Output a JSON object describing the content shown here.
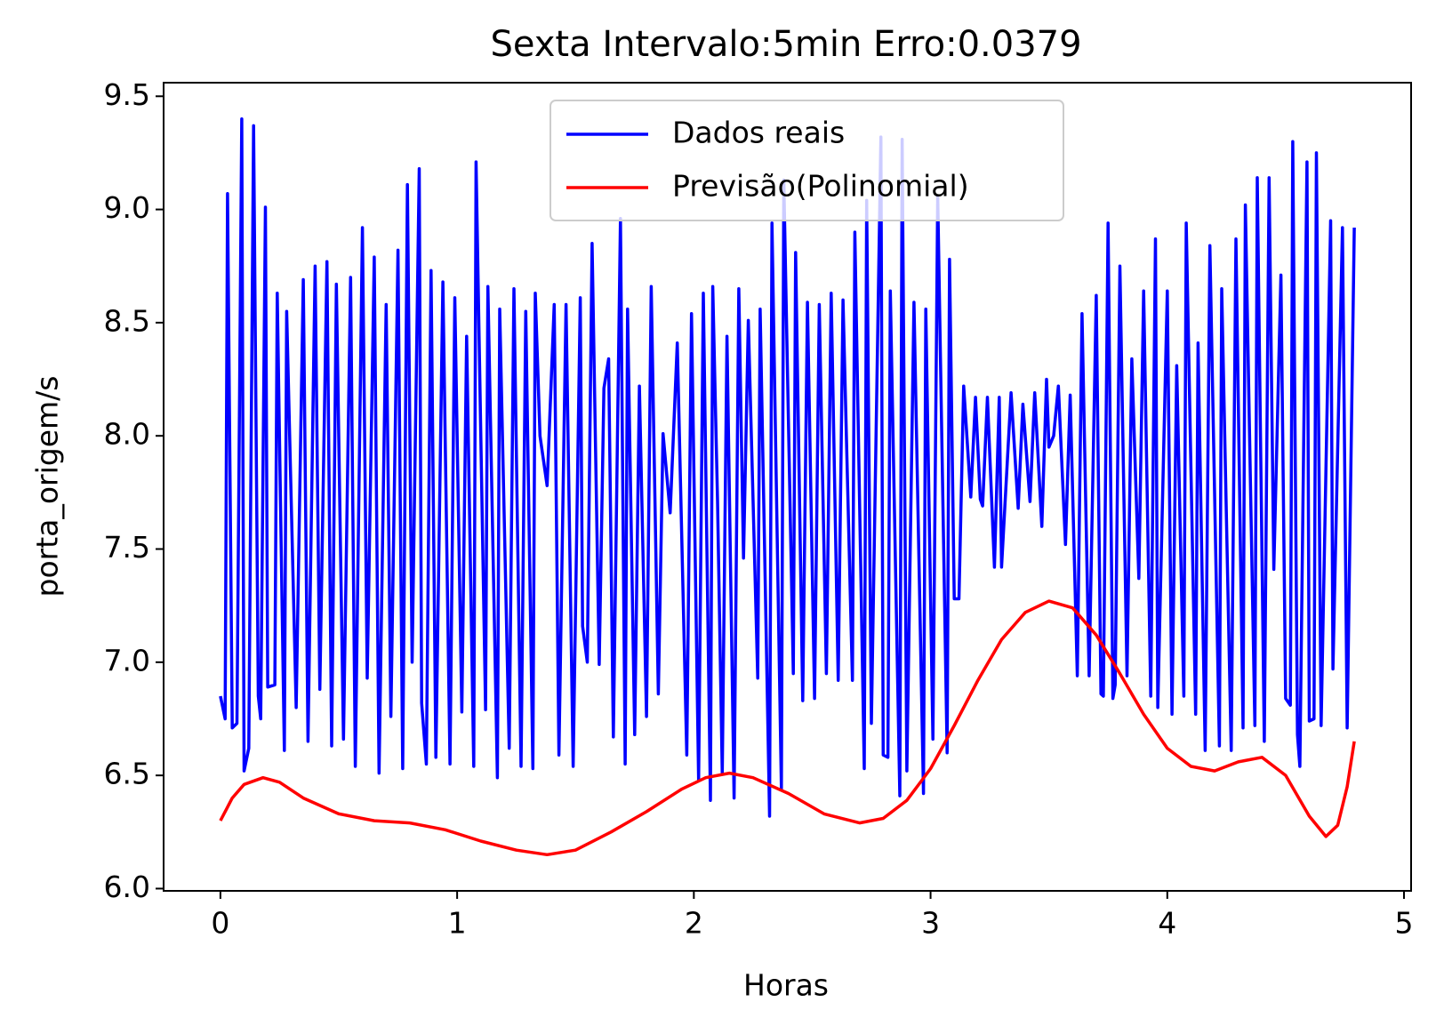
{
  "chart_data": {
    "type": "line",
    "title": "Sexta Intervalo:5min Erro:0.0379",
    "x_label": "Horas",
    "y_label": "porta_origem/s",
    "xlim": [
      -0.24,
      5.03
    ],
    "ylim": [
      5.99,
      9.56
    ],
    "xticks": [
      0,
      1,
      2,
      3,
      4,
      5
    ],
    "yticks": [
      {
        "value": 6.0,
        "label": "6.0"
      },
      6.5,
      {
        "value": 7.0,
        "label": "7.0"
      },
      7.5,
      {
        "value": 8.0,
        "label": "8.0"
      },
      8.5,
      {
        "value": 9.0,
        "label": "9.0"
      },
      9.5
    ],
    "legend_position": "upper center",
    "series": [
      {
        "name": "Dados reais",
        "color": "#0000ff",
        "x": [
          0.0,
          0.02,
          0.03,
          0.05,
          0.07,
          0.09,
          0.1,
          0.12,
          0.14,
          0.16,
          0.17,
          0.19,
          0.2,
          0.23,
          0.24,
          0.27,
          0.28,
          0.32,
          0.35,
          0.37,
          0.4,
          0.42,
          0.45,
          0.47,
          0.49,
          0.52,
          0.55,
          0.57,
          0.6,
          0.62,
          0.65,
          0.67,
          0.7,
          0.72,
          0.75,
          0.77,
          0.79,
          0.81,
          0.84,
          0.85,
          0.87,
          0.89,
          0.91,
          0.94,
          0.97,
          0.99,
          1.02,
          1.04,
          1.07,
          1.08,
          1.12,
          1.13,
          1.17,
          1.18,
          1.22,
          1.24,
          1.27,
          1.29,
          1.32,
          1.33,
          1.35,
          1.38,
          1.41,
          1.43,
          1.46,
          1.49,
          1.52,
          1.53,
          1.55,
          1.57,
          1.6,
          1.62,
          1.64,
          1.66,
          1.69,
          1.71,
          1.72,
          1.75,
          1.77,
          1.8,
          1.82,
          1.85,
          1.87,
          1.9,
          1.93,
          1.97,
          1.99,
          2.02,
          2.04,
          2.07,
          2.08,
          2.1,
          2.12,
          2.14,
          2.17,
          2.19,
          2.21,
          2.23,
          2.27,
          2.28,
          2.32,
          2.33,
          2.37,
          2.38,
          2.42,
          2.43,
          2.46,
          2.48,
          2.51,
          2.53,
          2.56,
          2.58,
          2.61,
          2.63,
          2.67,
          2.68,
          2.72,
          2.73,
          2.75,
          2.79,
          2.8,
          2.82,
          2.83,
          2.87,
          2.88,
          2.9,
          2.93,
          2.97,
          2.98,
          3.01,
          3.03,
          3.07,
          3.08,
          3.1,
          3.12,
          3.14,
          3.17,
          3.19,
          3.21,
          3.22,
          3.24,
          3.27,
          3.29,
          3.3,
          3.34,
          3.37,
          3.39,
          3.42,
          3.44,
          3.47,
          3.49,
          3.5,
          3.52,
          3.54,
          3.57,
          3.59,
          3.62,
          3.64,
          3.67,
          3.7,
          3.72,
          3.73,
          3.75,
          3.77,
          3.78,
          3.8,
          3.83,
          3.85,
          3.88,
          3.9,
          3.93,
          3.95,
          3.96,
          4.0,
          4.02,
          4.04,
          4.07,
          4.08,
          4.12,
          4.13,
          4.16,
          4.18,
          4.22,
          4.23,
          4.27,
          4.29,
          4.32,
          4.33,
          4.37,
          4.38,
          4.41,
          4.43,
          4.45,
          4.48,
          4.5,
          4.52,
          4.53,
          4.55,
          4.56,
          4.59,
          4.6,
          4.62,
          4.63,
          4.65,
          4.69,
          4.7,
          4.74,
          4.76,
          4.79
        ],
        "values": [
          6.85,
          6.75,
          9.07,
          6.71,
          6.73,
          9.4,
          6.52,
          6.62,
          9.37,
          6.85,
          6.75,
          9.01,
          6.89,
          6.9,
          8.63,
          6.61,
          8.55,
          6.8,
          8.69,
          6.65,
          8.75,
          6.88,
          8.77,
          6.63,
          8.67,
          6.66,
          8.7,
          6.54,
          8.92,
          6.93,
          8.79,
          6.51,
          8.58,
          6.76,
          8.82,
          6.53,
          9.11,
          7.0,
          9.18,
          6.82,
          6.55,
          8.73,
          6.58,
          8.68,
          6.55,
          8.61,
          6.78,
          8.44,
          6.54,
          9.21,
          6.79,
          8.66,
          6.49,
          8.56,
          6.62,
          8.65,
          6.54,
          8.55,
          6.53,
          8.63,
          8.0,
          7.78,
          8.58,
          6.59,
          8.58,
          6.54,
          8.61,
          7.16,
          7.0,
          8.85,
          6.99,
          8.21,
          8.34,
          6.67,
          8.96,
          6.55,
          8.56,
          6.68,
          8.22,
          6.76,
          8.66,
          6.86,
          8.01,
          7.66,
          8.41,
          6.59,
          8.54,
          6.48,
          8.63,
          6.39,
          8.66,
          7.71,
          6.51,
          8.44,
          6.4,
          8.65,
          7.46,
          8.51,
          6.93,
          8.56,
          6.32,
          8.94,
          6.44,
          9.13,
          6.95,
          8.81,
          6.83,
          8.59,
          6.84,
          8.58,
          6.95,
          8.63,
          6.92,
          8.6,
          6.92,
          8.9,
          6.53,
          9.04,
          6.73,
          9.32,
          6.59,
          6.58,
          8.64,
          6.41,
          9.31,
          6.52,
          8.59,
          6.42,
          8.56,
          6.66,
          9.06,
          6.6,
          8.78,
          7.28,
          7.28,
          8.22,
          7.73,
          8.17,
          7.72,
          7.69,
          8.17,
          7.42,
          8.17,
          7.42,
          8.19,
          7.68,
          8.14,
          7.71,
          8.19,
          7.6,
          8.25,
          7.95,
          8.0,
          8.22,
          7.52,
          8.18,
          6.94,
          8.54,
          6.94,
          8.62,
          6.86,
          6.85,
          8.94,
          6.84,
          6.9,
          8.75,
          6.94,
          8.34,
          7.37,
          8.64,
          6.85,
          8.87,
          6.8,
          8.64,
          6.77,
          8.31,
          6.85,
          8.94,
          6.77,
          8.41,
          6.61,
          8.84,
          6.63,
          8.65,
          6.61,
          8.87,
          6.71,
          9.02,
          6.72,
          9.14,
          6.65,
          9.14,
          7.41,
          8.71,
          6.84,
          6.81,
          9.3,
          6.68,
          6.54,
          9.21,
          6.74,
          6.75,
          9.25,
          6.72,
          8.95,
          6.97,
          8.92,
          6.71,
          8.92
        ]
      },
      {
        "name": "Previsão(Polinomial)",
        "color": "#ff0000",
        "x": [
          0,
          0.05,
          0.1,
          0.18,
          0.25,
          0.35,
          0.5,
          0.65,
          0.8,
          0.95,
          1.1,
          1.25,
          1.38,
          1.5,
          1.65,
          1.8,
          1.95,
          2.05,
          2.15,
          2.25,
          2.4,
          2.55,
          2.7,
          2.8,
          2.9,
          3.0,
          3.1,
          3.2,
          3.3,
          3.4,
          3.5,
          3.6,
          3.7,
          3.8,
          3.9,
          4.0,
          4.1,
          4.2,
          4.3,
          4.4,
          4.5,
          4.6,
          4.67,
          4.72,
          4.76,
          4.79
        ],
        "values": [
          6.3,
          6.4,
          6.46,
          6.49,
          6.47,
          6.4,
          6.33,
          6.3,
          6.29,
          6.26,
          6.21,
          6.17,
          6.15,
          6.17,
          6.25,
          6.34,
          6.44,
          6.49,
          6.51,
          6.49,
          6.42,
          6.33,
          6.29,
          6.31,
          6.39,
          6.53,
          6.72,
          6.92,
          7.1,
          7.22,
          7.27,
          7.24,
          7.12,
          6.95,
          6.77,
          6.62,
          6.54,
          6.52,
          6.56,
          6.58,
          6.5,
          6.32,
          6.23,
          6.28,
          6.45,
          6.65
        ]
      }
    ]
  }
}
